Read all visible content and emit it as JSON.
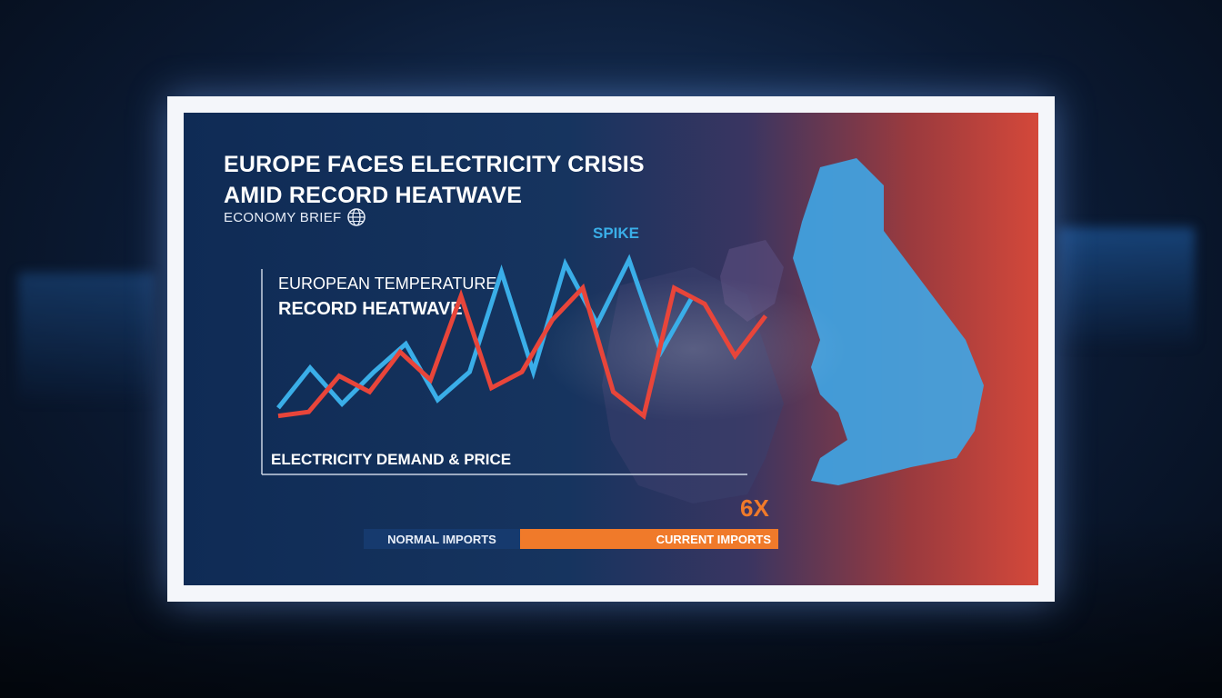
{
  "headline": {
    "line1": "EUROPE FACES ELECTRICITY CRISIS",
    "line2": "AMID RECORD HEATWAVE"
  },
  "source": {
    "label": "ECONOMY BRIEF",
    "icon": "globe-icon"
  },
  "colors": {
    "temperature_series": "#3aaee8",
    "demand_series": "#e8453a",
    "normal_imports": "#163a6e",
    "current_imports": "#f07a2a",
    "panel_left": "#0f2b55",
    "panel_right": "#d4483a"
  },
  "chart_data": {
    "type": "line",
    "title": "",
    "annotation": "SPIKE",
    "grid": false,
    "series": [
      {
        "name": "EUROPEAN TEMPERATURE",
        "subtitle": "RECORD HEATWAVE",
        "color": "#3aaee8",
        "values": [
          8,
          18,
          9,
          17,
          24,
          10,
          17,
          42,
          17,
          44,
          29,
          45,
          22,
          36
        ]
      },
      {
        "name": "ELECTRICITY DEMAND & PRICE",
        "color": "#e8453a",
        "values": [
          6,
          7,
          16,
          12,
          22,
          15,
          36,
          13,
          17,
          30,
          38,
          12,
          6,
          38,
          34,
          21,
          31
        ]
      }
    ]
  },
  "imports": {
    "normal_label": "NORMAL IMPORTS",
    "current_label": "CURRENT IMPORTS",
    "multiplier": "6X",
    "ratio": 6
  }
}
